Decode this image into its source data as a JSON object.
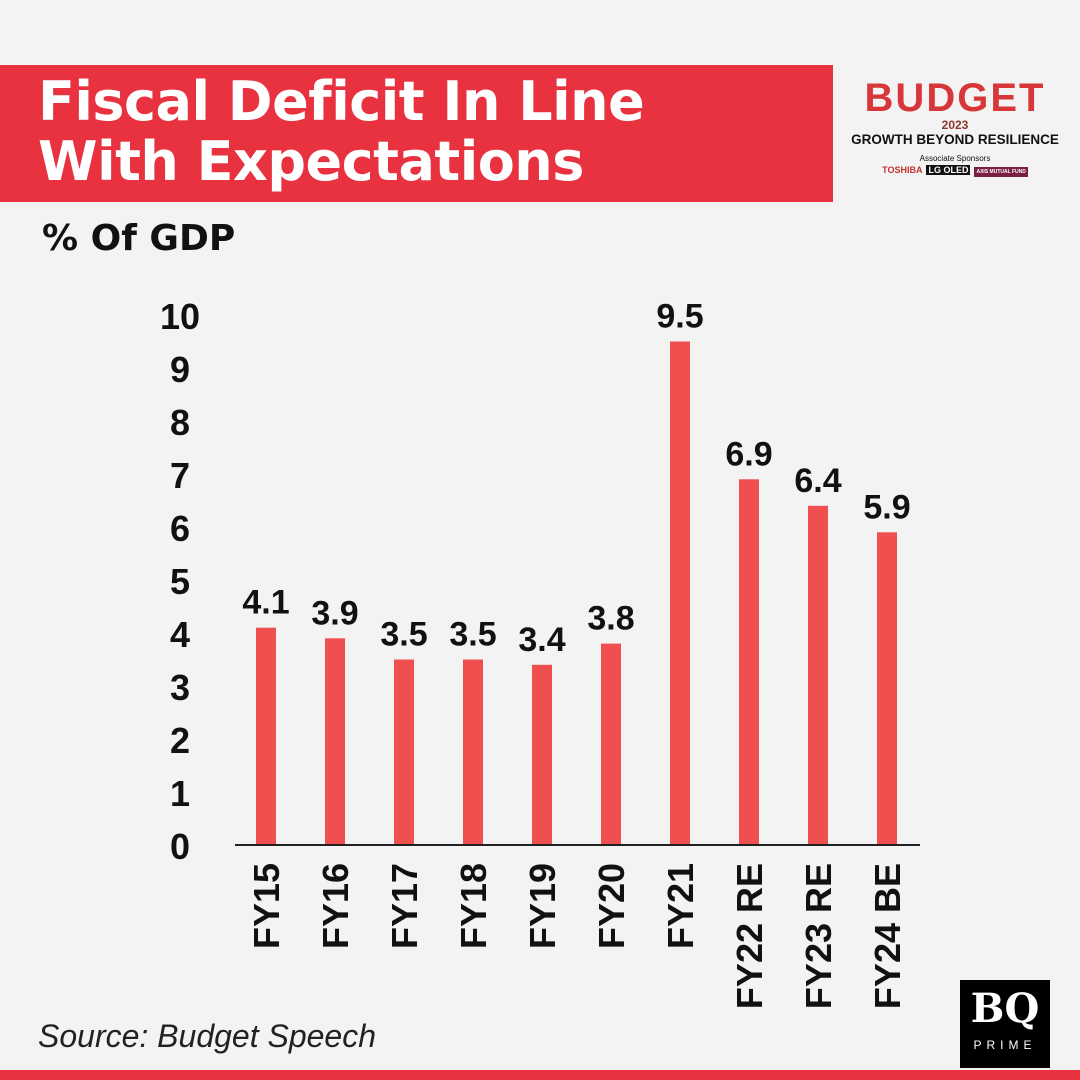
{
  "header": {
    "title_line1": "Fiscal Deficit In Line",
    "title_line2": "With Expectations",
    "subtitle": "% Of GDP"
  },
  "branding": {
    "budget": "BUDGET",
    "year": "2023",
    "tagline": "GROWTH BEYOND RESILIENCE",
    "associate": "Associate Sponsors",
    "sponsors": [
      "TOSHIBA",
      "LG OLED",
      "AXIS MUTUAL FUND"
    ],
    "publisher": "BQ",
    "publisher_sub": "PRIME"
  },
  "source": "Source: Budget Speech",
  "colors": {
    "accent": "#e8323f",
    "bar": "#ef4f4f"
  },
  "chart_data": {
    "type": "bar",
    "title": "Fiscal Deficit In Line With Expectations",
    "ylabel": "% Of GDP",
    "ylim": [
      0,
      10
    ],
    "yticks": [
      0,
      1,
      2,
      3,
      4,
      5,
      6,
      7,
      8,
      9,
      10
    ],
    "categories": [
      "FY15",
      "FY16",
      "FY17",
      "FY18",
      "FY19",
      "FY20",
      "FY21",
      "FY22 RE",
      "FY23 RE",
      "FY24 BE"
    ],
    "values": [
      4.1,
      3.9,
      3.5,
      3.5,
      3.4,
      3.8,
      9.5,
      6.9,
      6.4,
      5.9
    ],
    "grid": false
  }
}
